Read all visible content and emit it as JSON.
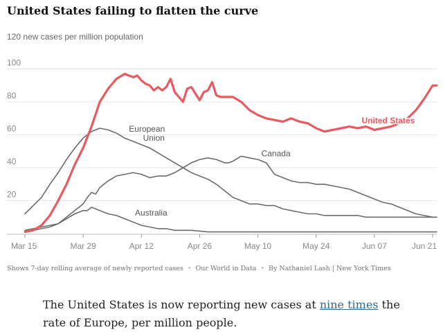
{
  "header": {
    "title": "United States failing to flatten the curve"
  },
  "footer": {
    "note": "Shows 7-day rolling average of newly reported cases",
    "source": "Our World in Data",
    "byline": "By Nathaniel Lash | New York Times"
  },
  "article": {
    "text_before": "The United States is now reporting new cases at ",
    "link_text": "nine times",
    "text_after": " the rate of Europe, per million people."
  },
  "chart_data": {
    "type": "line",
    "title": "United States failing to flatten the curve",
    "ylabel": "120 new cases per million population",
    "xlabel": "",
    "ylim": [
      0,
      120
    ],
    "xlim": [
      0,
      99
    ],
    "y_ticks": [
      20,
      40,
      60,
      80,
      100
    ],
    "x_ticks": [
      {
        "day": 0,
        "label": "Mar 15"
      },
      {
        "day": 14,
        "label": "Mar 29"
      },
      {
        "day": 28,
        "label": "Apr 12"
      },
      {
        "day": 42,
        "label": "Apr 26"
      },
      {
        "day": 56,
        "label": "May 10"
      },
      {
        "day": 70,
        "label": "May 24"
      },
      {
        "day": 84,
        "label": "Jun 07"
      },
      {
        "day": 98,
        "label": "Jun 21"
      }
    ],
    "grid": true,
    "colors": {
      "highlight": "#e9595f",
      "other": "#6b6b6b",
      "grid": "#e6e6e6"
    },
    "series": [
      {
        "name": "United States",
        "label": "United States",
        "highlight": true,
        "label_at": [
          88,
          67
        ],
        "x": [
          0,
          2,
          4,
          6,
          8,
          10,
          12,
          14,
          16,
          18,
          20,
          22,
          24,
          26,
          27,
          28,
          29,
          30,
          31,
          32,
          33,
          34,
          35,
          36,
          37,
          38,
          39,
          40,
          41,
          42,
          43,
          44,
          45,
          46,
          47,
          48,
          49,
          50,
          52,
          54,
          56,
          58,
          60,
          62,
          64,
          66,
          68,
          70,
          72,
          74,
          76,
          78,
          80,
          82,
          84,
          86,
          88,
          90,
          92,
          94,
          96,
          97,
          98,
          99
        ],
        "y": [
          1,
          2,
          5,
          11,
          20,
          30,
          42,
          52,
          65,
          80,
          88,
          94,
          97,
          95,
          96,
          93,
          91,
          90,
          87,
          89,
          87,
          89,
          94,
          86,
          83,
          80,
          88,
          89,
          85,
          81,
          86,
          87,
          92,
          84,
          83,
          83,
          83,
          83,
          80,
          75,
          72,
          70,
          69,
          68,
          70,
          68,
          67,
          64,
          62,
          63,
          64,
          65,
          64,
          65,
          63,
          64,
          65,
          67,
          70,
          75,
          82,
          86,
          90,
          90
        ]
      },
      {
        "name": "Canada",
        "label": "Canada",
        "highlight": false,
        "label_at": [
          61,
          47
        ],
        "x": [
          0,
          2,
          4,
          6,
          8,
          10,
          12,
          14,
          15,
          16,
          17,
          18,
          20,
          22,
          24,
          26,
          28,
          30,
          32,
          34,
          36,
          38,
          40,
          42,
          44,
          46,
          47,
          48,
          49,
          50,
          52,
          54,
          56,
          58,
          60,
          62,
          64,
          66,
          68,
          70,
          72,
          74,
          76,
          78,
          80,
          82,
          84,
          86,
          88,
          90,
          92,
          94,
          96,
          98,
          99
        ],
        "y": [
          2,
          3,
          4,
          5,
          6,
          10,
          14,
          18,
          22,
          25,
          24,
          28,
          32,
          35,
          36,
          37,
          36,
          34,
          35,
          35,
          37,
          40,
          43,
          45,
          46,
          45,
          44,
          43,
          43,
          44,
          47,
          46,
          45,
          43,
          36,
          34,
          32,
          31,
          31,
          30,
          30,
          29,
          28,
          27,
          25,
          23,
          21,
          19,
          18,
          16,
          14,
          12,
          11,
          10,
          10
        ]
      },
      {
        "name": "European Union",
        "label": "European\nUnion",
        "highlight": false,
        "label_at": [
          30,
          62
        ],
        "x": [
          0,
          2,
          4,
          6,
          8,
          10,
          12,
          14,
          16,
          18,
          20,
          22,
          24,
          26,
          28,
          30,
          32,
          34,
          36,
          38,
          40,
          42,
          44,
          46,
          48,
          50,
          52,
          54,
          56,
          58,
          60,
          62,
          64,
          66,
          68,
          70,
          72,
          74,
          76,
          78,
          80,
          82,
          84,
          86,
          88,
          90,
          92,
          94,
          96,
          98,
          99
        ],
        "y": [
          12,
          17,
          22,
          30,
          37,
          45,
          52,
          58,
          62,
          64,
          63,
          61,
          58,
          56,
          54,
          52,
          49,
          46,
          43,
          40,
          37,
          35,
          33,
          30,
          26,
          22,
          20,
          18,
          18,
          17,
          17,
          15,
          14,
          13,
          12,
          12,
          11,
          11,
          11,
          11,
          11,
          10,
          10,
          10,
          10,
          10,
          10,
          10,
          10,
          10,
          10
        ]
      },
      {
        "name": "Australia",
        "label": "Australia",
        "highlight": false,
        "label_at": [
          31,
          11
        ],
        "x": [
          0,
          2,
          4,
          6,
          8,
          10,
          12,
          14,
          15,
          16,
          17,
          18,
          20,
          22,
          24,
          26,
          28,
          30,
          32,
          34,
          36,
          40,
          44,
          48,
          52,
          56,
          60,
          64,
          68,
          72,
          76,
          80,
          84,
          88,
          92,
          96,
          99
        ],
        "y": [
          1,
          2,
          3,
          4,
          6,
          9,
          12,
          14,
          14,
          16,
          15,
          14,
          12,
          11,
          9,
          7,
          5,
          4,
          3,
          3,
          2,
          2,
          1,
          1,
          1,
          1,
          1,
          1,
          1,
          1,
          1,
          1,
          1,
          1,
          1,
          1,
          1
        ]
      }
    ]
  }
}
